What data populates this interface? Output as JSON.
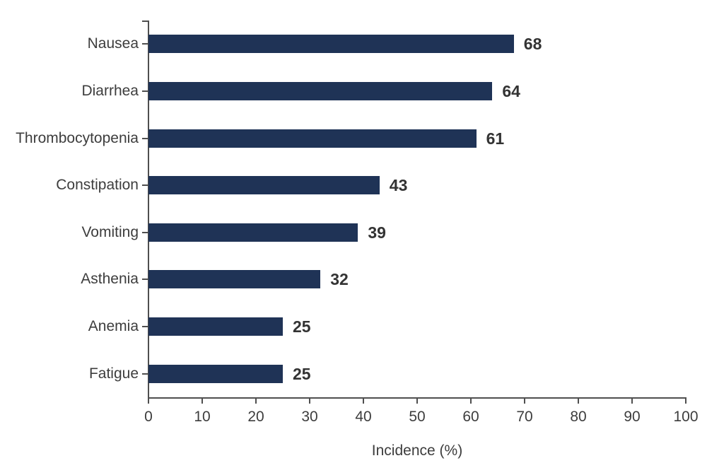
{
  "chart_data": {
    "type": "bar",
    "orientation": "horizontal",
    "title": "",
    "xlabel": "Incidence (%)",
    "ylabel": "",
    "categories": [
      "Nausea",
      "Diarrhea",
      "Thrombocytopenia",
      "Constipation",
      "Vomiting",
      "Asthenia",
      "Anemia",
      "Fatigue"
    ],
    "values": [
      68,
      64,
      61,
      43,
      39,
      32,
      25,
      25
    ],
    "data_labels": [
      "68",
      "64",
      "61",
      "43",
      "39",
      "32",
      "25",
      "25"
    ],
    "xlim": [
      0,
      100
    ],
    "xticks": [
      0,
      10,
      20,
      30,
      40,
      50,
      60,
      70,
      80,
      90,
      100
    ],
    "grid": false,
    "legend": false,
    "bar_color": "#1f3356"
  },
  "colors": {
    "bar": "#1f3356",
    "axis": "#4f4f4f",
    "category_text": "#3d3d3d",
    "tick_text": "#3d3d3d",
    "value_text": "#333333",
    "background": "#ffffff"
  }
}
